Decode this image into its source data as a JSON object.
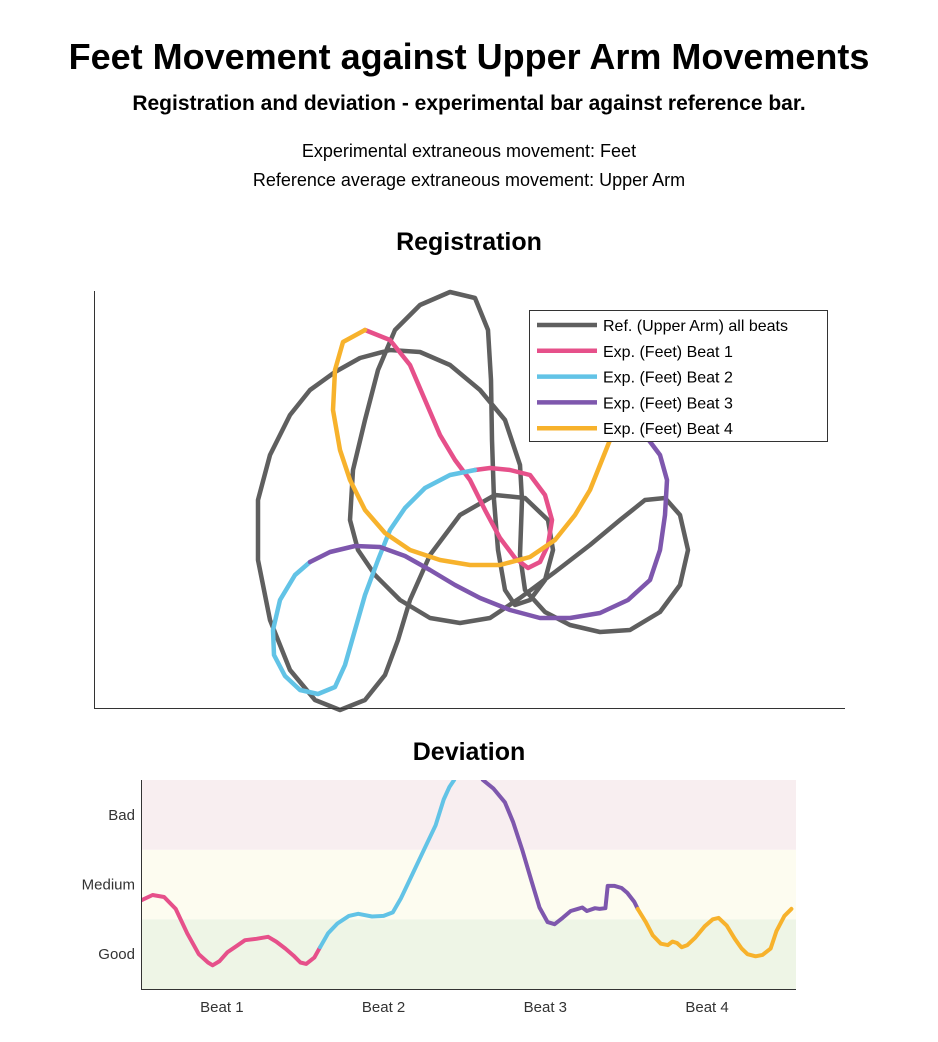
{
  "header": {
    "title": "Feet Movement against Upper Arm Movements",
    "subtitle": "Registration and deviation - experimental bar against reference bar.",
    "info_line1": "Experimental extraneous movement: Feet",
    "info_line2": "Reference average extraneous movement: Upper Arm"
  },
  "chart_data": [
    {
      "type": "line",
      "title": "Registration",
      "xlabel": "",
      "ylabel": "",
      "axis_ticks": "none",
      "legend_position": "top-right",
      "legend": [
        {
          "label": "Ref. (Upper Arm) all beats",
          "color": "#5f5f5f"
        },
        {
          "label": "Exp. (Feet) Beat 1",
          "color": "#e6508a"
        },
        {
          "label": "Exp. (Feet) Beat 2",
          "color": "#62c3e6"
        },
        {
          "label": "Exp. (Feet) Beat 3",
          "color": "#7e57ad"
        },
        {
          "label": "Exp. (Feet) Beat 4",
          "color": "#f7b22c"
        }
      ],
      "series": [
        {
          "name": "Ref. (Upper Arm) all beats",
          "color": "#5f5f5f",
          "points": [
            [
              310,
              390
            ],
            [
              290,
              415
            ],
            [
              270,
              455
            ],
            [
              258,
              500
            ],
            [
              258,
              560
            ],
            [
              270,
              620
            ],
            [
              290,
              670
            ],
            [
              315,
              700
            ],
            [
              340,
              710
            ],
            [
              365,
              700
            ],
            [
              385,
              675
            ],
            [
              398,
              640
            ],
            [
              410,
              600
            ],
            [
              430,
              555
            ],
            [
              460,
              515
            ],
            [
              495,
              495
            ],
            [
              525,
              498
            ],
            [
              548,
              520
            ],
            [
              553,
              550
            ],
            [
              545,
              580
            ],
            [
              530,
              600
            ],
            [
              515,
              605
            ],
            [
              505,
              590
            ],
            [
              498,
              550
            ],
            [
              494,
              500
            ],
            [
              492,
              440
            ],
            [
              491,
              380
            ],
            [
              488,
              330
            ],
            [
              475,
              298
            ],
            [
              450,
              292
            ],
            [
              420,
              305
            ],
            [
              395,
              330
            ],
            [
              378,
              370
            ],
            [
              365,
              420
            ],
            [
              353,
              470
            ],
            [
              350,
              520
            ],
            [
              358,
              550
            ],
            [
              375,
              575
            ],
            [
              400,
              600
            ],
            [
              430,
              618
            ],
            [
              460,
              623
            ],
            [
              490,
              618
            ],
            [
              520,
              598
            ],
            [
              555,
              572
            ],
            [
              590,
              545
            ],
            [
              620,
              520
            ],
            [
              645,
              500
            ],
            [
              665,
              498
            ],
            [
              680,
              515
            ],
            [
              688,
              550
            ],
            [
              680,
              585
            ],
            [
              660,
              612
            ],
            [
              630,
              630
            ],
            [
              600,
              632
            ],
            [
              570,
              625
            ],
            [
              545,
              612
            ],
            [
              525,
              590
            ],
            [
              520,
              555
            ],
            [
              522,
              500
            ],
            [
              520,
              465
            ],
            [
              505,
              420
            ],
            [
              480,
              390
            ],
            [
              450,
              365
            ],
            [
              420,
              352
            ],
            [
              390,
              350
            ],
            [
              360,
              358
            ],
            [
              335,
              372
            ],
            [
              310,
              390
            ]
          ]
        },
        {
          "name": "Exp. (Feet) Beat 1",
          "color": "#e6508a",
          "points": [
            [
              365,
              330
            ],
            [
              390,
              340
            ],
            [
              410,
              365
            ],
            [
              425,
              400
            ],
            [
              440,
              435
            ],
            [
              455,
              460
            ],
            [
              470,
              480
            ],
            [
              485,
              510
            ],
            [
              500,
              538
            ],
            [
              515,
              558
            ],
            [
              528,
              568
            ],
            [
              540,
              562
            ],
            [
              548,
              545
            ],
            [
              552,
              520
            ],
            [
              545,
              495
            ],
            [
              530,
              475
            ],
            [
              510,
              470
            ],
            [
              490,
              468
            ],
            [
              475,
              470
            ]
          ]
        },
        {
          "name": "Exp. (Feet) Beat 2",
          "color": "#62c3e6",
          "points": [
            [
              475,
              470
            ],
            [
              450,
              475
            ],
            [
              425,
              488
            ],
            [
              405,
              508
            ],
            [
              390,
              530
            ],
            [
              378,
              560
            ],
            [
              365,
              595
            ],
            [
              355,
              630
            ],
            [
              345,
              665
            ],
            [
              335,
              687
            ],
            [
              318,
              694
            ],
            [
              300,
              690
            ],
            [
              285,
              676
            ],
            [
              274,
              655
            ],
            [
              273,
              630
            ],
            [
              280,
              600
            ],
            [
              295,
              575
            ],
            [
              310,
              562
            ]
          ]
        },
        {
          "name": "Exp. (Feet) Beat 3",
          "color": "#7e57ad",
          "points": [
            [
              310,
              562
            ],
            [
              330,
              552
            ],
            [
              355,
              546
            ],
            [
              380,
              547
            ],
            [
              405,
              556
            ],
            [
              430,
              570
            ],
            [
              455,
              585
            ],
            [
              480,
              598
            ],
            [
              510,
              610
            ],
            [
              540,
              618
            ],
            [
              570,
              618
            ],
            [
              600,
              613
            ],
            [
              628,
              600
            ],
            [
              650,
              580
            ],
            [
              660,
              550
            ],
            [
              665,
              515
            ],
            [
              667,
              480
            ],
            [
              660,
              455
            ],
            [
              645,
              435
            ],
            [
              625,
              427
            ]
          ]
        },
        {
          "name": "Exp. (Feet) Beat 4",
          "color": "#f7b22c",
          "points": [
            [
              625,
              427
            ],
            [
              610,
              440
            ],
            [
              600,
              465
            ],
            [
              590,
              490
            ],
            [
              575,
              515
            ],
            [
              555,
              540
            ],
            [
              530,
              557
            ],
            [
              500,
              565
            ],
            [
              470,
              565
            ],
            [
              440,
              560
            ],
            [
              410,
              550
            ],
            [
              385,
              533
            ],
            [
              365,
              510
            ],
            [
              350,
              480
            ],
            [
              340,
              450
            ],
            [
              333,
              410
            ],
            [
              335,
              370
            ],
            [
              343,
              342
            ],
            [
              365,
              330
            ]
          ]
        }
      ]
    },
    {
      "type": "line",
      "title": "Deviation",
      "xlabel": "",
      "ylabel": "",
      "y_ticks": [
        "Good",
        "Medium",
        "Bad"
      ],
      "x_ticks": [
        "Beat 1",
        "Beat 2",
        "Beat 3",
        "Beat 4"
      ],
      "bands": [
        {
          "label": "Good",
          "color": "#eef5e6"
        },
        {
          "label": "Medium",
          "color": "#fdfcf0"
        },
        {
          "label": "Bad",
          "color": "#f8eef0"
        }
      ],
      "ylim": [
        0,
        3
      ],
      "series": [
        {
          "name": "Exp. (Feet) Beat 1",
          "color": "#e6508a",
          "points": [
            [
              0.0,
              1.27
            ],
            [
              0.1,
              1.35
            ],
            [
              0.2,
              1.32
            ],
            [
              0.3,
              1.15
            ],
            [
              0.4,
              0.8
            ],
            [
              0.5,
              0.5
            ],
            [
              0.58,
              0.38
            ],
            [
              0.62,
              0.34
            ],
            [
              0.68,
              0.4
            ],
            [
              0.75,
              0.53
            ],
            [
              0.83,
              0.62
            ],
            [
              0.9,
              0.7
            ],
            [
              1.0,
              0.72
            ],
            [
              1.1,
              0.75
            ],
            [
              1.17,
              0.68
            ],
            [
              1.25,
              0.58
            ],
            [
              1.32,
              0.48
            ],
            [
              1.38,
              0.38
            ],
            [
              1.43,
              0.36
            ],
            [
              1.5,
              0.45
            ],
            [
              1.55,
              0.6
            ]
          ]
        },
        {
          "name": "Exp. (Feet) Beat 2",
          "color": "#62c3e6",
          "points": [
            [
              1.55,
              0.6
            ],
            [
              1.62,
              0.8
            ],
            [
              1.7,
              0.94
            ],
            [
              1.8,
              1.05
            ],
            [
              1.88,
              1.08
            ],
            [
              2.0,
              1.04
            ],
            [
              2.1,
              1.05
            ],
            [
              2.18,
              1.1
            ],
            [
              2.25,
              1.3
            ],
            [
              2.35,
              1.65
            ],
            [
              2.45,
              2.0
            ],
            [
              2.55,
              2.35
            ],
            [
              2.62,
              2.72
            ],
            [
              2.67,
              2.9
            ],
            [
              2.71,
              3.0
            ]
          ]
        },
        {
          "name": "Exp. (Feet) Beat 3",
          "color": "#7e57ad",
          "points": [
            [
              2.96,
              3.0
            ],
            [
              3.05,
              2.88
            ],
            [
              3.15,
              2.68
            ],
            [
              3.22,
              2.4
            ],
            [
              3.3,
              2.0
            ],
            [
              3.38,
              1.55
            ],
            [
              3.45,
              1.17
            ],
            [
              3.52,
              0.96
            ],
            [
              3.58,
              0.93
            ],
            [
              3.65,
              1.02
            ],
            [
              3.72,
              1.12
            ],
            [
              3.78,
              1.15
            ],
            [
              3.82,
              1.17
            ],
            [
              3.86,
              1.12
            ],
            [
              3.93,
              1.16
            ],
            [
              3.97,
              1.15
            ],
            [
              4.02,
              1.16
            ],
            [
              4.04,
              1.48
            ],
            [
              4.1,
              1.48
            ],
            [
              4.16,
              1.45
            ],
            [
              4.21,
              1.38
            ],
            [
              4.27,
              1.25
            ],
            [
              4.3,
              1.15
            ]
          ]
        },
        {
          "name": "Exp. (Feet) Beat 4",
          "color": "#f7b22c",
          "points": [
            [
              4.3,
              1.15
            ],
            [
              4.37,
              0.96
            ],
            [
              4.43,
              0.77
            ],
            [
              4.5,
              0.65
            ],
            [
              4.56,
              0.63
            ],
            [
              4.6,
              0.68
            ],
            [
              4.64,
              0.66
            ],
            [
              4.68,
              0.6
            ],
            [
              4.73,
              0.63
            ],
            [
              4.8,
              0.74
            ],
            [
              4.88,
              0.9
            ],
            [
              4.95,
              1.0
            ],
            [
              5.0,
              1.02
            ],
            [
              5.07,
              0.91
            ],
            [
              5.14,
              0.72
            ],
            [
              5.2,
              0.58
            ],
            [
              5.25,
              0.5
            ],
            [
              5.32,
              0.47
            ],
            [
              5.38,
              0.49
            ],
            [
              5.45,
              0.58
            ],
            [
              5.5,
              0.83
            ],
            [
              5.57,
              1.05
            ],
            [
              5.63,
              1.15
            ]
          ]
        }
      ]
    }
  ]
}
